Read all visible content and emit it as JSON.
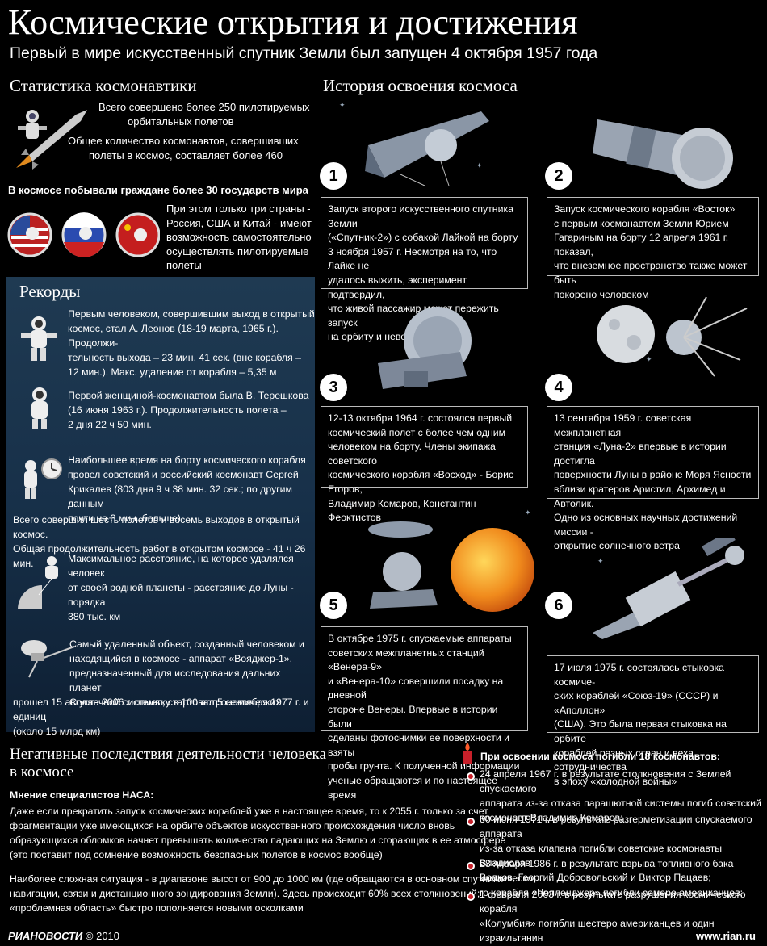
{
  "header": {
    "title": "Космические открытия и достижения",
    "subtitle": "Первый в мире искусственный спутник Земли был запущен 4 октября 1957 года"
  },
  "stats": {
    "heading": "Статистика космонавтики",
    "line1a": "Всего совершено более 250 пилотируемых",
    "line1b": "орбитальных полетов",
    "line2a": "Общее количество космонавтов, совершивших",
    "line2b": "полеты в космос, составляет более 460",
    "countries_heading": "В космосе побывали граждане более 30 государств мира",
    "countries_text": [
      "При этом только три страны -",
      "Россия, США и Китай - имеют",
      "возможность самостоятельно",
      "осуществлять пилотируемые",
      "полеты"
    ]
  },
  "records": {
    "heading": "Рекорды",
    "r1": [
      "Первым человеком, совершившим выход в открытый",
      "космос, стал А. Леонов (18-19 марта, 1965 г.). Продолжи-",
      "тельность выхода – 23 мин. 41 сек. (вне корабля –",
      "12 мин.). Макс. удаление от корабля – 5,35 м"
    ],
    "r2": [
      "Первой женщиной-космонавтом была В. Терешкова",
      "(16 июня 1963 г.). Продолжительность полета –",
      "2 дня 22 ч  50 мин."
    ],
    "r3": [
      "Наибольшее время на борту космического корабля",
      "провел советский и российский космонавт Сергей",
      "Крикалев (803 дня 9 ч 38 мин. 32 сек.; по другим данным",
      "почти на 3 мин. больше)."
    ],
    "r3b": [
      "Всего совершил шесть полетов и восемь выходов в открытый космос.",
      "Общая продолжительность работ в открытом космосе - 41 ч 26 мин."
    ],
    "r4": [
      "Максимальное расстояние, на которое удалялся человек",
      "от своей родной планеты - расстояние до Луны - порядка",
      "380 тыс. км"
    ],
    "r5": [
      "Самый удаленный объект, созданный человеком и",
      "находящийся в космосе -  аппарат «Вояджер-1»,",
      "предназначенный для исследования дальних планет",
      "Солнечной системы, стартовал 5 сентября 1977 г. и",
      "прошел 15 августа 2006 г. отметку в 100 астрономических единиц",
      "(около 15 млрд км)"
    ]
  },
  "history": {
    "heading": "История освоения космоса",
    "items": [
      {
        "num": "1",
        "lines": [
          "Запуск второго искусственного спутника Земли",
          "(«Спутник-2») с собакой Лайкой на борту",
          "3 ноября 1957 г. Несмотря на то, что Лайке не",
          "удалось выжить, эксперимент подтвердил,",
          "что живой пассажир может пережить запуск",
          "на орбиту и невесомость"
        ]
      },
      {
        "num": "2",
        "lines": [
          "Запуск космического корабля «Восток»",
          "с первым космонавтом Земли Юрием",
          "Гагариным на борту 12 апреля 1961 г. показал,",
          "что внеземное пространство также может быть",
          "покорено человеком"
        ]
      },
      {
        "num": "3",
        "lines": [
          "12-13 октября 1964 г. состоялся первый",
          "космический полет с более чем одним",
          "человеком на борту. Члены экипажа советского",
          "космического корабля «Восход» - Борис Егоров,",
          "Владимир Комаров, Константин Феоктистов"
        ]
      },
      {
        "num": "4",
        "lines": [
          "13 сентября 1959 г. советская межпланетная",
          "станция «Луна-2» впервые в истории достигла",
          "поверхности Луны в районе Моря Ясности",
          "вблизи кратеров Аристил, Архимед и Автолик.",
          "Одно из основных научных достижений миссии -",
          "открытие солнечного ветра"
        ]
      },
      {
        "num": "5",
        "lines": [
          "В октябре 1975 г. спускаемые аппараты",
          "советских межпланетных станций «Венера-9»",
          "и «Венера-10» совершили посадку на дневной",
          "стороне Венеры. Впервые в истории были",
          "сделаны фотоснимки ее поверхности и взяты",
          "пробы грунта. К полученной информации",
          "ученые обращаются и по настоящее время"
        ]
      },
      {
        "num": "6",
        "lines": [
          "17 июля 1975 г. состоялась стыковка космиче-",
          "ских кораблей «Союз-19» (СССР) и «Аполлон»",
          "(США). Это была первая стыковка на орбите",
          "кораблей разных стран и веха сотрудничества",
          "в эпоху «холодной войны»"
        ]
      }
    ]
  },
  "negative": {
    "heading_a": "Негативные последствия деятельности человека",
    "heading_b": "в космосе",
    "opinion": "Мнение специалистов НАСА:",
    "p1": [
      "Даже если прекратить запуск космических кораблей уже в настоящее время, то к 2055 г. только за счет",
      "фрагментации уже имеющихся на орбите объектов искусственного происхождения число вновь",
      "образующихся обломков начнет превышать количество падающих на Землю и сгорающих в ее атмосфере",
      "(это поставит под сомнение возможность безопасных полетов в космос вообще)"
    ],
    "p2": [
      "Наиболее сложная ситуация - в диапазоне высот от 900 до 1000 км (где обращаются в основном спутники",
      "навигации, связи и дистанционного зондирования Земли). Здесь происходит 60% всех столкновений;",
      "«проблемная область»  быстро пополняется новыми осколками"
    ]
  },
  "died": {
    "heading": "При освоении космоса погибли 18 космонавтов:",
    "items": [
      [
        "24 апреля 1967 г. в результате столкновения с Землей спускаемого",
        "аппарата из-за отказа парашютной системы погиб советский",
        "космонавт Владимир Комаров;"
      ],
      [
        "30 июня 1971 г. в результате разгерметизации спускаемого аппарата",
        "из-за отказа клапана погибли советские космонавты Владислав",
        "Волков, Георгий Добровольский и Виктор Пацаев;"
      ],
      [
        "28 января 1986 г. в результате взрыва топливного бака космическо-",
        "го корабля «Челленджер» погибли семеро американцев;"
      ],
      [
        "1 февраля 2003 г. в результате разрушения космического корабля",
        "«Колумбия» погибли шестеро американцев и один израильтянин"
      ]
    ]
  },
  "footer": {
    "brand": "РИАНОВОСТИ",
    "copyright": "© 2010",
    "site": "www.rian.ru"
  }
}
